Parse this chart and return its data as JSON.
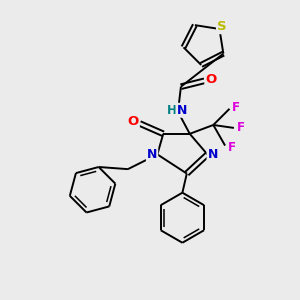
{
  "bg_color": "#ebebeb",
  "bond_color": "#000000",
  "atom_colors": {
    "N": "#0000cc",
    "O": "#ff0000",
    "S": "#bbbb00",
    "F": "#dd00dd",
    "HN": "#008080",
    "C": "#000000"
  },
  "lw": 1.4,
  "fs": 8.5
}
